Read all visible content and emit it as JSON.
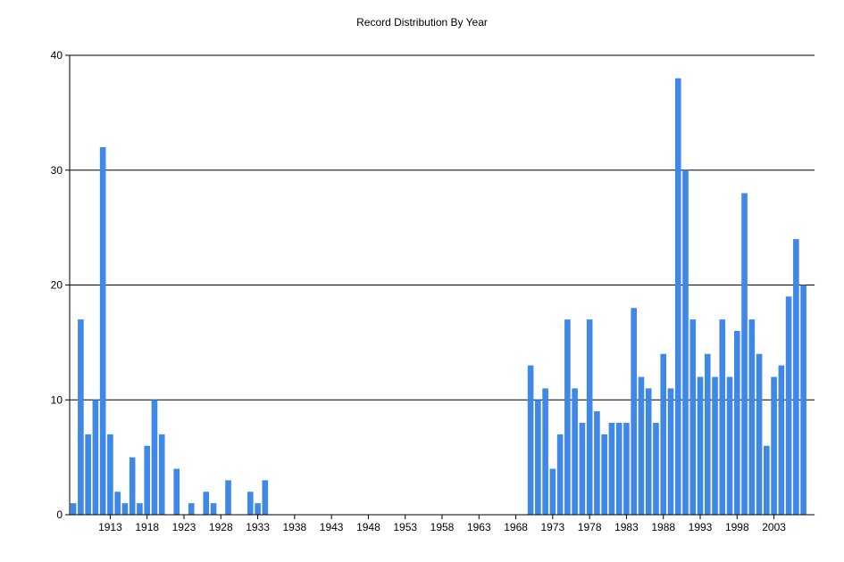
{
  "chart_data": {
    "type": "bar",
    "title": "Record Distribution By Year",
    "xlabel": "",
    "ylabel": "",
    "ylim": [
      0,
      40
    ],
    "yticks": [
      0,
      10,
      20,
      30,
      40
    ],
    "xlim": [
      1907.5,
      2008.5
    ],
    "xticks": [
      1913,
      1918,
      1923,
      1928,
      1933,
      1938,
      1943,
      1948,
      1953,
      1958,
      1963,
      1968,
      1973,
      1978,
      1983,
      1988,
      1993,
      1998,
      2003
    ],
    "grid": "horizontal",
    "bar_color": "#3f88e8",
    "x": [
      1908,
      1909,
      1910,
      1911,
      1912,
      1913,
      1914,
      1915,
      1916,
      1917,
      1918,
      1919,
      1920,
      1921,
      1922,
      1923,
      1924,
      1925,
      1926,
      1927,
      1928,
      1929,
      1930,
      1931,
      1932,
      1933,
      1934,
      1935,
      1936,
      1937,
      1938,
      1939,
      1940,
      1941,
      1942,
      1943,
      1944,
      1945,
      1946,
      1947,
      1948,
      1949,
      1950,
      1951,
      1952,
      1953,
      1954,
      1955,
      1956,
      1957,
      1958,
      1959,
      1960,
      1961,
      1962,
      1963,
      1964,
      1965,
      1966,
      1967,
      1968,
      1969,
      1970,
      1971,
      1972,
      1973,
      1974,
      1975,
      1976,
      1977,
      1978,
      1979,
      1980,
      1981,
      1982,
      1983,
      1984,
      1985,
      1986,
      1987,
      1988,
      1989,
      1990,
      1991,
      1992,
      1993,
      1994,
      1995,
      1996,
      1997,
      1998,
      1999,
      2000,
      2001,
      2002,
      2003,
      2004,
      2005,
      2006,
      2007,
      2008
    ],
    "values": [
      1,
      17,
      7,
      10,
      32,
      7,
      2,
      1,
      5,
      1,
      6,
      10,
      7,
      0,
      4,
      0,
      1,
      0,
      2,
      1,
      0,
      3,
      0,
      0,
      2,
      1,
      3,
      0,
      0,
      0,
      0,
      0,
      0,
      0,
      0,
      0,
      0,
      0,
      0,
      0,
      0,
      0,
      0,
      0,
      0,
      0,
      0,
      0,
      0,
      0,
      0,
      0,
      0,
      0,
      0,
      0,
      0,
      0,
      0,
      0,
      0,
      0,
      13,
      10,
      11,
      4,
      7,
      17,
      11,
      8,
      17,
      9,
      7,
      8,
      8,
      8,
      18,
      12,
      11,
      8,
      14,
      11,
      38,
      30,
      17,
      12,
      14,
      12,
      17,
      12,
      16,
      28,
      17,
      14,
      6,
      12,
      13,
      19,
      24,
      20,
      0
    ]
  }
}
